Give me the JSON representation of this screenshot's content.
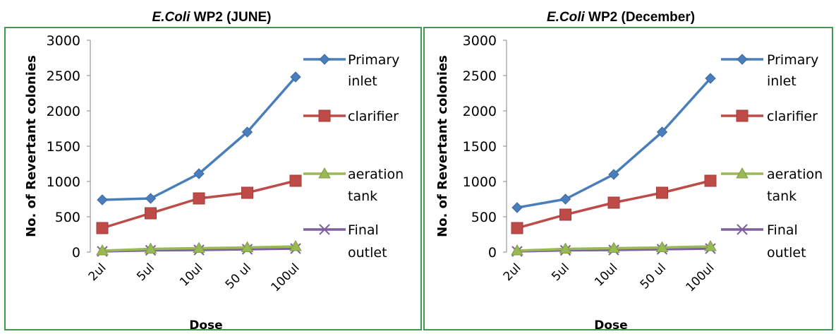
{
  "chart_data": [
    {
      "type": "line",
      "title_italic": "E.Coli",
      "title_rest": " WP2 (JUNE)",
      "xlabel": "Dose",
      "ylabel": "No. of Revertant colonies",
      "ylim": [
        0,
        3000
      ],
      "yticks": [
        "0",
        "500",
        "1000",
        "1500",
        "2000",
        "2500",
        "3000"
      ],
      "categories": [
        "2ul",
        "5ul",
        "10ul",
        "50 ul",
        "100ul"
      ],
      "grid": false,
      "legend_position": "right",
      "series": [
        {
          "name": [
            "Primary",
            "inlet"
          ],
          "color": "#4a7ebb",
          "marker": "diamond",
          "values": [
            740,
            760,
            1110,
            1700,
            2480
          ]
        },
        {
          "name": [
            "clarifier"
          ],
          "color": "#be4b48",
          "marker": "square",
          "values": [
            340,
            550,
            760,
            840,
            1010
          ]
        },
        {
          "name": [
            "aeration",
            "tank"
          ],
          "color": "#98b954",
          "marker": "triangle",
          "values": [
            20,
            45,
            55,
            65,
            80
          ]
        },
        {
          "name": [
            "Final",
            "outlet"
          ],
          "color": "#7d60a0",
          "marker": "x",
          "values": [
            10,
            25,
            30,
            40,
            50
          ]
        }
      ]
    },
    {
      "type": "line",
      "title_italic": "E.Coli",
      "title_rest": " WP2 (December)",
      "xlabel": "Dose",
      "ylabel": "No. of Revertant colonies",
      "ylim": [
        0,
        3000
      ],
      "yticks": [
        "0",
        "500",
        "1000",
        "1500",
        "2000",
        "2500",
        "3000"
      ],
      "categories": [
        "2ul",
        "5ul",
        "10ul",
        "50 ul",
        "100ul"
      ],
      "grid": false,
      "legend_position": "right",
      "series": [
        {
          "name": [
            "Primary",
            "inlet"
          ],
          "color": "#4a7ebb",
          "marker": "diamond",
          "values": [
            630,
            750,
            1100,
            1700,
            2460
          ]
        },
        {
          "name": [
            "clarifier"
          ],
          "color": "#be4b48",
          "marker": "square",
          "values": [
            340,
            530,
            700,
            840,
            1010
          ]
        },
        {
          "name": [
            "aeration",
            "tank"
          ],
          "color": "#98b954",
          "marker": "triangle",
          "values": [
            20,
            45,
            55,
            65,
            80
          ]
        },
        {
          "name": [
            "Final",
            "outlet"
          ],
          "color": "#7d60a0",
          "marker": "x",
          "values": [
            10,
            25,
            30,
            40,
            50
          ]
        }
      ]
    }
  ]
}
